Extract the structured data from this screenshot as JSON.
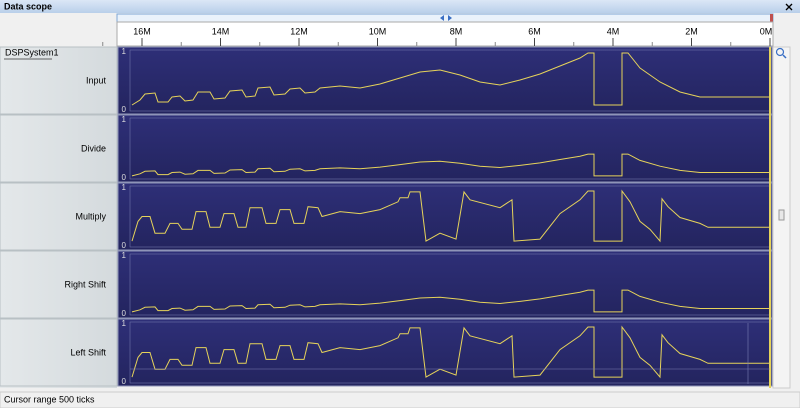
{
  "window": {
    "title": "Data scope"
  },
  "ruler": {
    "labels": [
      "16M",
      "14M",
      "12M",
      "10M",
      "8M",
      "6M",
      "4M",
      "2M",
      "0M"
    ]
  },
  "tree": {
    "root": "DSPSystem1"
  },
  "channels": [
    {
      "name": "Input",
      "max": "1",
      "min": "0"
    },
    {
      "name": "Divide",
      "max": "1",
      "min": "0"
    },
    {
      "name": "Multiply",
      "max": "1",
      "min": "0"
    },
    {
      "name": "Right Shift",
      "max": "1",
      "min": "0"
    },
    {
      "name": "Left Shift",
      "max": "1",
      "min": "0"
    }
  ],
  "status": "Cursor range 500 ticks"
}
